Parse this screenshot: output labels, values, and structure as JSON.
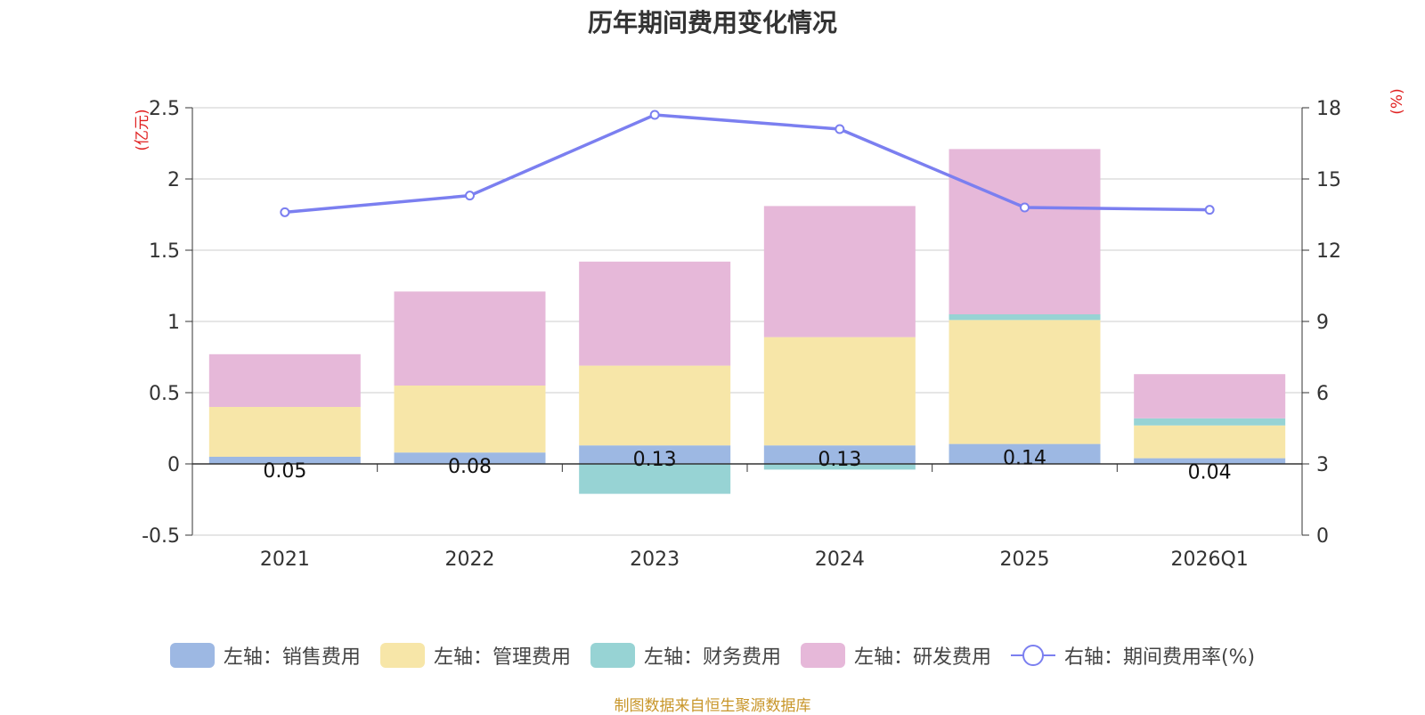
{
  "chart_data": {
    "type": "bar",
    "title": "历年期间费用变化情况",
    "categories": [
      "2021",
      "2022",
      "2023",
      "2024",
      "2025",
      "2026Q1"
    ],
    "left_axis": {
      "label": "(亿元)",
      "ylim": [
        -0.5,
        2.5
      ],
      "ticks": [
        "2.5",
        "2",
        "1.5",
        "1",
        "0.5",
        "0",
        "-0.5"
      ]
    },
    "right_axis": {
      "label": "(%)",
      "ylim": [
        0,
        18
      ],
      "ticks": [
        "18",
        "15",
        "12",
        "9",
        "6",
        "3",
        "0"
      ]
    },
    "series": [
      {
        "name": "左轴：销售费用",
        "kind": "bar",
        "color": "#9db8e3",
        "values": [
          0.05,
          0.08,
          0.13,
          0.13,
          0.14,
          0.04
        ]
      },
      {
        "name": "左轴：管理费用",
        "kind": "bar",
        "color": "#f7e6a8",
        "values": [
          0.35,
          0.47,
          0.56,
          0.76,
          0.87,
          0.23
        ]
      },
      {
        "name": "左轴：财务费用",
        "kind": "bar",
        "color": "#97d3d4",
        "values": [
          0.0,
          0.0,
          -0.21,
          -0.04,
          0.04,
          0.05
        ]
      },
      {
        "name": "左轴：研发费用",
        "kind": "bar",
        "color": "#e6b8d9",
        "values": [
          0.37,
          0.66,
          0.73,
          0.92,
          1.16,
          0.31
        ]
      },
      {
        "name": "右轴：期间费用率(%)",
        "kind": "line",
        "axis": "right",
        "color": "#7b7ff0",
        "values": [
          13.6,
          14.3,
          17.7,
          17.1,
          13.8,
          13.7
        ]
      }
    ],
    "data_labels": [
      "0.05",
      "0.08",
      "0.13",
      "0.13",
      "0.14",
      "0.04"
    ],
    "legend_position": "bottom"
  },
  "source_text": "制图数据来自恒生聚源数据库"
}
